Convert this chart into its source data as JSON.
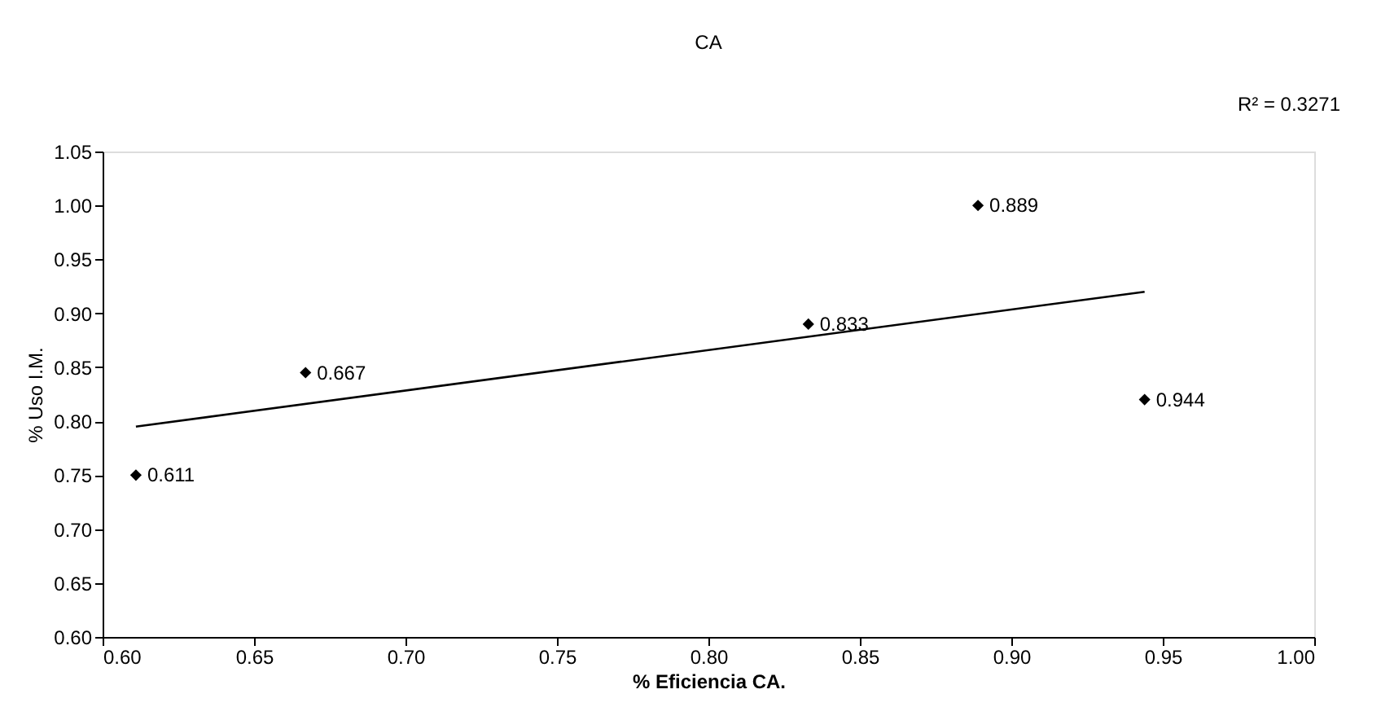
{
  "chart_data": {
    "type": "scatter",
    "title": "CA",
    "xlabel": "% Eficiencia CA.",
    "ylabel": "% Uso I.M.",
    "annotations": [
      "R² = 0.3271",
      {
        "text": "0.611",
        "x": 0.611,
        "y": 0.75
      },
      {
        "text": "0.667",
        "x": 0.667,
        "y": 0.845
      },
      {
        "text": "0.833",
        "x": 0.833,
        "y": 0.89
      },
      {
        "text": "0.889",
        "x": 0.889,
        "y": 1.0
      },
      {
        "text": "0.944",
        "x": 0.944,
        "y": 0.82
      }
    ],
    "series": [
      {
        "type": "scatter",
        "color": "#000000",
        "x": [
          0.611,
          0.667,
          0.833,
          0.889,
          0.944
        ],
        "values": [
          0.75,
          0.845,
          0.89,
          1.0,
          0.82
        ],
        "marker": "diamond"
      },
      {
        "type": "line",
        "color": "#000000",
        "x": [
          0.611,
          0.944
        ],
        "values": [
          0.795,
          0.92
        ],
        "line_style": "solid"
      }
    ],
    "xlim": [
      0.6,
      1.0
    ],
    "xticks": [
      {
        "value": 0.6,
        "label": "0.60"
      },
      {
        "value": 0.65,
        "label": "0.65"
      },
      {
        "value": 0.7,
        "label": "0.70"
      },
      {
        "value": 0.75,
        "label": "0.75"
      },
      {
        "value": 0.8,
        "label": "0.80"
      },
      {
        "value": 0.85,
        "label": "0.85"
      },
      {
        "value": 0.9,
        "label": "0.90"
      },
      {
        "value": 0.95,
        "label": "0.95"
      },
      {
        "value": 1.0,
        "label": "1.00"
      }
    ],
    "ylim": [
      0.6,
      1.05
    ],
    "yticks": [
      {
        "value": 0.6,
        "label": "0.60"
      },
      {
        "value": 0.65,
        "label": "0.65"
      },
      {
        "value": 0.7,
        "label": "0.70"
      },
      {
        "value": 0.75,
        "label": "0.75"
      },
      {
        "value": 0.8,
        "label": "0.80"
      },
      {
        "value": 0.85,
        "label": "0.85"
      },
      {
        "value": 0.9,
        "label": "0.90"
      },
      {
        "value": 0.95,
        "label": "0.95"
      },
      {
        "value": 1.0,
        "label": "1.00"
      },
      {
        "value": 1.05,
        "label": "1.05"
      }
    ],
    "grid": false
  }
}
